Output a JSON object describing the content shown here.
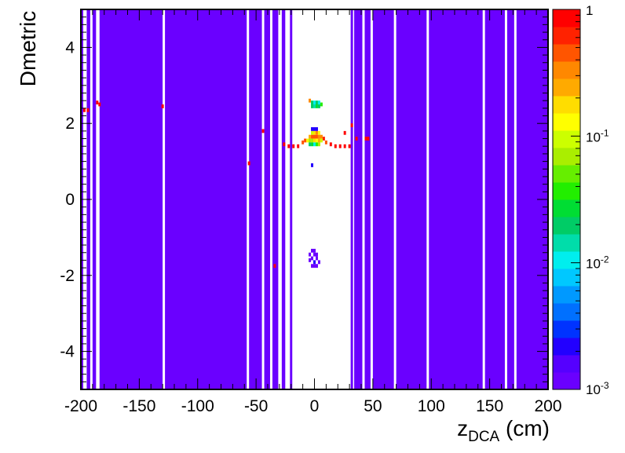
{
  "chart_data": {
    "type": "heatmap",
    "title": "",
    "xlabel": {
      "main": "z",
      "sub": "DCA",
      "unit": " (cm)"
    },
    "ylabel": "Dmetric",
    "xlim": [
      -200,
      200
    ],
    "ylim": [
      -5,
      5
    ],
    "x_ticks": [
      -200,
      -150,
      -100,
      -50,
      0,
      50,
      100,
      150,
      200
    ],
    "y_ticks": [
      -4,
      -2,
      0,
      2,
      4
    ],
    "colorbar": {
      "scale": "log",
      "range": [
        0.001,
        1
      ],
      "tick_labels": [
        {
          "base": "10",
          "exp": "-3",
          "value": 0.001
        },
        {
          "base": "10",
          "exp": "-2",
          "value": 0.01
        },
        {
          "base": "10",
          "exp": "-1",
          "value": 0.1
        },
        {
          "base": "1",
          "exp": "",
          "value": 1
        }
      ],
      "colors": [
        "#6a00ff",
        "#5500ff",
        "#2200ff",
        "#0033ff",
        "#0070ff",
        "#0099ff",
        "#00c8ff",
        "#00eeee",
        "#00ddaa",
        "#00cc66",
        "#00dd33",
        "#22ee00",
        "#66ee00",
        "#aaee00",
        "#ccff00",
        "#ffff00",
        "#ffdd00",
        "#ffaa00",
        "#ff8800",
        "#ff5500",
        "#ff2200",
        "#ff0000"
      ]
    },
    "background_fill": {
      "value": 0.001,
      "color": "#6a00ff"
    },
    "blank_bands_x": [
      [
        -198,
        -195
      ],
      [
        -192,
        -190
      ],
      [
        -187,
        -184
      ],
      [
        -130,
        -128
      ],
      [
        -58,
        -56
      ],
      [
        -45,
        -43
      ],
      [
        -38,
        -36
      ],
      [
        -31,
        -28
      ],
      [
        -25,
        -21
      ],
      [
        -19,
        31
      ],
      [
        33,
        34
      ],
      [
        41,
        43
      ],
      [
        48,
        50
      ],
      [
        68,
        70
      ],
      [
        96,
        98
      ],
      [
        144,
        146
      ],
      [
        163,
        165
      ],
      [
        171,
        173
      ]
    ],
    "cells": [
      {
        "x": -4,
        "y": 2.6,
        "value": 0.3
      },
      {
        "x": -2,
        "y": 2.55,
        "value": 0.02
      },
      {
        "x": 0,
        "y": 2.55,
        "value": 0.01
      },
      {
        "x": 2,
        "y": 2.55,
        "value": 0.02
      },
      {
        "x": 4,
        "y": 2.55,
        "value": 0.01
      },
      {
        "x": 6,
        "y": 2.5,
        "value": 0.04
      },
      {
        "x": 0,
        "y": 2.45,
        "value": 0.015
      },
      {
        "x": 2,
        "y": 2.45,
        "value": 0.03
      },
      {
        "x": 4,
        "y": 2.45,
        "value": 0.02
      },
      {
        "x": -2,
        "y": 2.45,
        "value": 0.02
      },
      {
        "x": -2,
        "y": 1.85,
        "value": 0.002
      },
      {
        "x": 0,
        "y": 1.85,
        "value": 0.002
      },
      {
        "x": 2,
        "y": 1.85,
        "value": 0.002
      },
      {
        "x": -2,
        "y": 1.75,
        "value": 0.1
      },
      {
        "x": 0,
        "y": 1.75,
        "value": 0.2
      },
      {
        "x": 2,
        "y": 1.75,
        "value": 0.3
      },
      {
        "x": 4,
        "y": 1.75,
        "value": 0.15
      },
      {
        "x": -4,
        "y": 1.65,
        "value": 0.25
      },
      {
        "x": -2,
        "y": 1.65,
        "value": 0.4
      },
      {
        "x": 0,
        "y": 1.65,
        "value": 0.5
      },
      {
        "x": 2,
        "y": 1.65,
        "value": 0.45
      },
      {
        "x": 4,
        "y": 1.65,
        "value": 0.35
      },
      {
        "x": 6,
        "y": 1.65,
        "value": 0.3
      },
      {
        "x": -6,
        "y": 1.55,
        "value": 0.12
      },
      {
        "x": -4,
        "y": 1.55,
        "value": 0.08
      },
      {
        "x": -2,
        "y": 1.55,
        "value": 0.07
      },
      {
        "x": 0,
        "y": 1.55,
        "value": 0.2
      },
      {
        "x": 2,
        "y": 1.55,
        "value": 0.15
      },
      {
        "x": 4,
        "y": 1.55,
        "value": 0.25
      },
      {
        "x": 6,
        "y": 1.55,
        "value": 0.1
      },
      {
        "x": -4,
        "y": 1.45,
        "value": 0.02
      },
      {
        "x": -2,
        "y": 1.45,
        "value": 0.03
      },
      {
        "x": 0,
        "y": 1.45,
        "value": 0.01
      },
      {
        "x": 2,
        "y": 1.45,
        "value": 0.04
      },
      {
        "x": 4,
        "y": 1.45,
        "value": 0.06
      },
      {
        "x": 8,
        "y": 1.6,
        "value": 0.6
      },
      {
        "x": 10,
        "y": 1.5,
        "value": 0.5
      },
      {
        "x": -10,
        "y": 1.5,
        "value": 0.5
      },
      {
        "x": -8,
        "y": 1.55,
        "value": 0.4
      },
      {
        "x": 14,
        "y": 1.45,
        "value": 0.8
      },
      {
        "x": 18,
        "y": 1.4,
        "value": 0.8
      },
      {
        "x": 22,
        "y": 1.4,
        "value": 0.8
      },
      {
        "x": 26,
        "y": 1.4,
        "value": 0.8
      },
      {
        "x": 30,
        "y": 1.4,
        "value": 0.8
      },
      {
        "x": 36,
        "y": 1.6,
        "value": 0.8
      },
      {
        "x": 46,
        "y": 1.6,
        "value": 0.8
      },
      {
        "x": 44,
        "y": 1.6,
        "value": 0.8
      },
      {
        "x": 26,
        "y": 1.75,
        "value": 0.8
      },
      {
        "x": 32,
        "y": 1.95,
        "value": 0.8
      },
      {
        "x": -26,
        "y": 1.45,
        "value": 0.8
      },
      {
        "x": -22,
        "y": 1.4,
        "value": 0.8
      },
      {
        "x": -18,
        "y": 1.4,
        "value": 0.8
      },
      {
        "x": -14,
        "y": 1.4,
        "value": 0.8
      },
      {
        "x": -44,
        "y": 1.8,
        "value": 0.8
      },
      {
        "x": -56,
        "y": 0.95,
        "value": 0.8
      },
      {
        "x": -34,
        "y": -1.75,
        "value": 0.8
      },
      {
        "x": -130,
        "y": 2.45,
        "value": 0.8
      },
      {
        "x": -184,
        "y": 2.5,
        "value": 0.8
      },
      {
        "x": -186,
        "y": 2.55,
        "value": 0.8
      },
      {
        "x": -194,
        "y": 2.35,
        "value": 0.8
      },
      {
        "x": -197,
        "y": 2.35,
        "value": 0.8
      },
      {
        "x": -2,
        "y": 0.9,
        "value": 0.002
      },
      {
        "x": -2,
        "y": -1.35,
        "value": 0.001
      },
      {
        "x": 0,
        "y": -1.35,
        "value": 0.001
      },
      {
        "x": -4,
        "y": -1.45,
        "value": 0.001
      },
      {
        "x": 0,
        "y": -1.45,
        "value": 0.001
      },
      {
        "x": 2,
        "y": -1.45,
        "value": 0.001
      },
      {
        "x": -2,
        "y": -1.55,
        "value": 0.001
      },
      {
        "x": 2,
        "y": -1.55,
        "value": 0.001
      },
      {
        "x": -4,
        "y": -1.6,
        "value": 0.001
      },
      {
        "x": 0,
        "y": -1.65,
        "value": 0.002
      },
      {
        "x": 4,
        "y": -1.65,
        "value": 0.001
      },
      {
        "x": -2,
        "y": -1.75,
        "value": 0.001
      },
      {
        "x": 2,
        "y": -1.75,
        "value": 0.001
      },
      {
        "x": 0,
        "y": -1.75,
        "value": 0.001
      }
    ]
  }
}
